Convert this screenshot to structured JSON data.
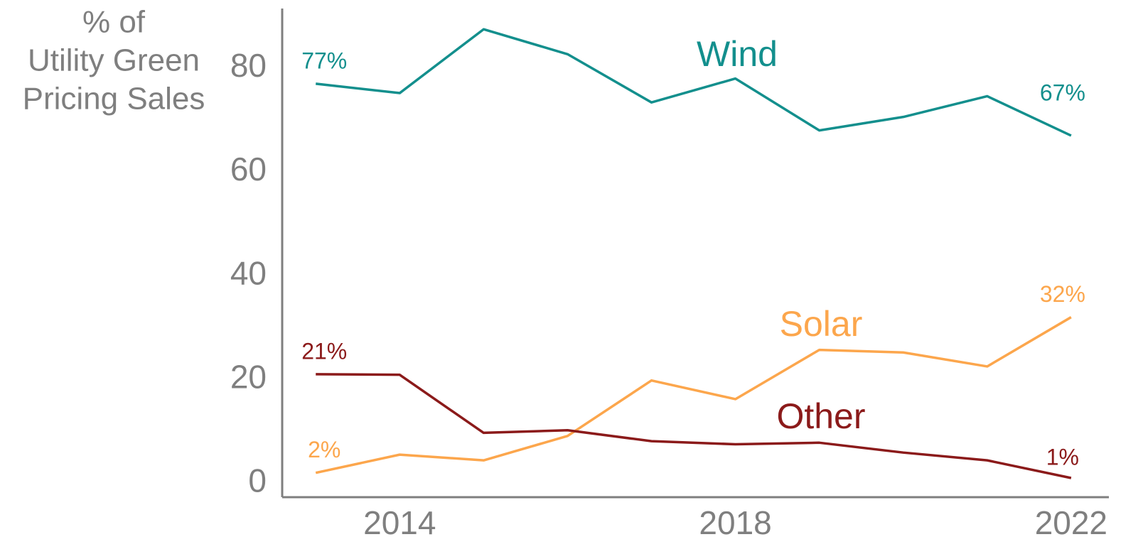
{
  "chart_data": {
    "type": "line",
    "y_label": [
      "% of",
      "Utility Green",
      "Pricing Sales"
    ],
    "x": [
      2013,
      2014,
      2015,
      2016,
      2017,
      2018,
      2019,
      2020,
      2021,
      2022
    ],
    "xlim": [
      2012.6,
      2022.45
    ],
    "xticks": [
      2014,
      2018,
      2022
    ],
    "ylim": [
      -2.7,
      91.5
    ],
    "yticks": [
      0,
      20,
      40,
      60,
      80
    ],
    "axis_color": "#7f7f7f",
    "series": [
      {
        "name": "Wind",
        "color": "#138f8d",
        "values": [
          77,
          75.2,
          87.5,
          82.7,
          73.4,
          78.0,
          68.0,
          70.6,
          74.6,
          67
        ],
        "value_labels": [
          "77%",
          null,
          null,
          null,
          null,
          null,
          null,
          null,
          null,
          "67%"
        ]
      },
      {
        "name": "Solar",
        "color": "#fca64c",
        "values": [
          2,
          5.5,
          4.4,
          9.1,
          19.8,
          16.2,
          25.7,
          25.2,
          22.5,
          32
        ],
        "value_labels": [
          "2%",
          null,
          null,
          null,
          null,
          null,
          null,
          null,
          null,
          "32%"
        ]
      },
      {
        "name": "Other",
        "color": "#8b1a1a",
        "values": [
          21,
          20.9,
          9.7,
          10.2,
          8.1,
          7.5,
          7.8,
          5.9,
          4.4,
          1
        ],
        "value_labels": [
          "21%",
          null,
          null,
          null,
          null,
          null,
          null,
          null,
          null,
          "1%"
        ]
      }
    ]
  }
}
